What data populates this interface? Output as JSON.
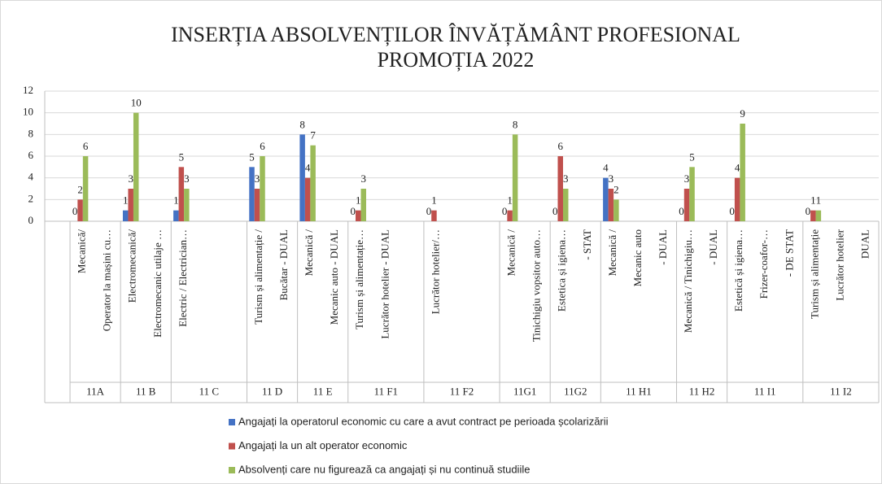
{
  "chart_data": {
    "type": "bar",
    "title": [
      "INSERȚIA ABSOLVENȚILOR ÎNVĂȚĂMÂNT PROFESIONAL",
      "PROMOȚIA 2022"
    ],
    "groups": [
      {
        "name": null,
        "categories": [
          null
        ]
      },
      {
        "name": "11A",
        "categories": [
          "Mecanică/",
          "Operator la mașini cu…"
        ]
      },
      {
        "name": "11 B",
        "categories": [
          "Electromecanică/",
          "Electromecanic utilaje …"
        ]
      },
      {
        "name": "11 C",
        "categories": [
          "Electric / Electrician…",
          null,
          null
        ]
      },
      {
        "name": "11 D",
        "categories": [
          "Turism și alimentație  /",
          "Bucătar - DUAL"
        ]
      },
      {
        "name": "11 E",
        "categories": [
          "Mecanică /",
          "Mecanic auto  - DUAL"
        ]
      },
      {
        "name": "11 F1",
        "categories": [
          "Turism și alimentație…",
          "Lucrător hotelier - DUAL",
          null
        ]
      },
      {
        "name": "11 F2",
        "categories": [
          "Lucrător hotelier/…",
          null,
          null
        ]
      },
      {
        "name": "11G1",
        "categories": [
          "Mecanică /",
          "Tinichigiu vopsitor auto…"
        ]
      },
      {
        "name": "11G2",
        "categories": [
          "Estetica și igiena…",
          "- STAT"
        ]
      },
      {
        "name": "11 H1",
        "categories": [
          "Mecanică /",
          "Mecanic auto",
          "- DUAL"
        ]
      },
      {
        "name": "11 H2",
        "categories": [
          "Mecanică / Tinichigiu…",
          "- DUAL"
        ]
      },
      {
        "name": "11 I1",
        "categories": [
          "Estetică și igiena…",
          "Frizer-coafor-…",
          "- DE STAT"
        ]
      },
      {
        "name": "11 I2",
        "categories": [
          "Turism și alimentație",
          "Lucrător hotelier",
          "DUAL"
        ]
      }
    ],
    "series": [
      {
        "name": "Angajați  la operatorul economic cu care a avut contract pe perioada școlarizării",
        "color": "#4472c4",
        "values": [
          null,
          0,
          null,
          1,
          null,
          1,
          null,
          null,
          5,
          null,
          8,
          null,
          0,
          null,
          null,
          0,
          null,
          null,
          0,
          null,
          0,
          null,
          4,
          null,
          null,
          0,
          null,
          0,
          null,
          null,
          0,
          null,
          null
        ]
      },
      {
        "name": "Angajați  la un alt operator economic",
        "color": "#c0504d",
        "values": [
          null,
          2,
          null,
          3,
          null,
          5,
          null,
          null,
          3,
          null,
          4,
          null,
          1,
          null,
          null,
          1,
          null,
          null,
          1,
          null,
          6,
          null,
          3,
          null,
          null,
          3,
          null,
          4,
          null,
          null,
          1,
          null,
          null
        ]
      },
      {
        "name": "Absolvenți  care nu figurează  ca angajați  și nu continuă studiile",
        "color": "#9bbb59",
        "values": [
          null,
          6,
          null,
          10,
          null,
          3,
          null,
          null,
          6,
          null,
          7,
          null,
          3,
          null,
          null,
          null,
          null,
          null,
          8,
          null,
          3,
          null,
          2,
          null,
          null,
          5,
          null,
          9,
          null,
          null,
          1,
          null,
          null
        ]
      }
    ],
    "ylim": [
      0,
      12
    ],
    "yticks": [
      0,
      2,
      4,
      6,
      8,
      10,
      12
    ],
    "grid": true
  }
}
